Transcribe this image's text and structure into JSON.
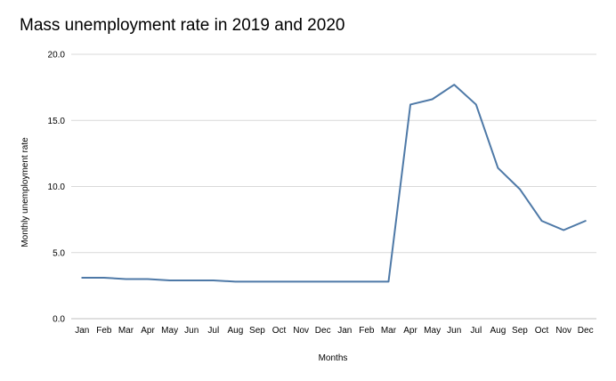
{
  "chart_data": {
    "type": "line",
    "title": "Mass unemployment rate in 2019 and 2020",
    "xlabel": "Months",
    "ylabel": "Monthly unemployment rate",
    "ylim": [
      0,
      20
    ],
    "yticks": [
      "0.0",
      "5.0",
      "10.0",
      "15.0",
      "20.0"
    ],
    "grid": true,
    "categories": [
      "Jan",
      "Feb",
      "Mar",
      "Apr",
      "May",
      "Jun",
      "Jul",
      "Aug",
      "Sep",
      "Oct",
      "Nov",
      "Dec",
      "Jan",
      "Feb",
      "Mar",
      "Apr",
      "May",
      "Jun",
      "Jul",
      "Aug",
      "Sep",
      "Oct",
      "Nov",
      "Dec"
    ],
    "series": [
      {
        "color": "#4e79a7",
        "values": [
          3.1,
          3.1,
          3.0,
          3.0,
          2.9,
          2.9,
          2.9,
          2.8,
          2.8,
          2.8,
          2.8,
          2.8,
          2.8,
          2.8,
          2.8,
          16.2,
          16.6,
          17.7,
          16.2,
          11.4,
          9.8,
          7.4,
          6.7,
          7.4
        ]
      }
    ]
  }
}
